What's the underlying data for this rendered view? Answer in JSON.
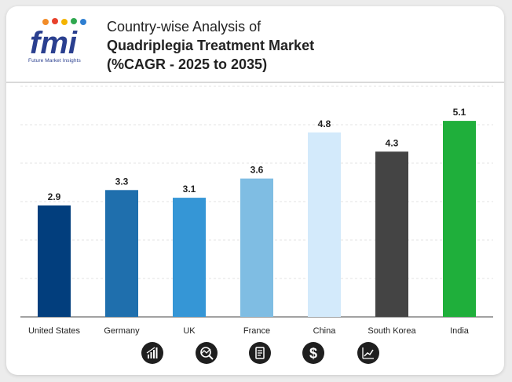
{
  "brand": {
    "logo_text": "fmi",
    "tagline": "Future Market Insights"
  },
  "title": {
    "line1": "Country-wise Analysis of",
    "line2": "Quadriplegia Treatment Market",
    "line3": "(%CAGR - 2025 to 2035)"
  },
  "chart_data": {
    "type": "bar",
    "title": "Country-wise Analysis of Quadriplegia Treatment Market (%CAGR - 2025 to 2035)",
    "categories": [
      "United States",
      "Germany",
      "UK",
      "France",
      "China",
      "South Korea",
      "India"
    ],
    "values": [
      2.9,
      3.3,
      3.1,
      3.6,
      4.8,
      4.3,
      5.1
    ],
    "value_labels": [
      "2.9",
      "3.3",
      "3.1",
      "3.6",
      "4.8",
      "4.3",
      "5.1"
    ],
    "colors": [
      "#023e7d",
      "#1f6fad",
      "#3596d6",
      "#7fbde3",
      "#d3eafb",
      "#444444",
      "#1faf3b"
    ],
    "xlabel": "",
    "ylabel": "",
    "ylim": [
      0,
      6
    ],
    "grid": true,
    "legend": "none"
  },
  "footer_icons": [
    "growth-chart-icon",
    "analysis-magnifier-icon",
    "document-icon",
    "dollar-icon",
    "trend-chart-icon"
  ]
}
